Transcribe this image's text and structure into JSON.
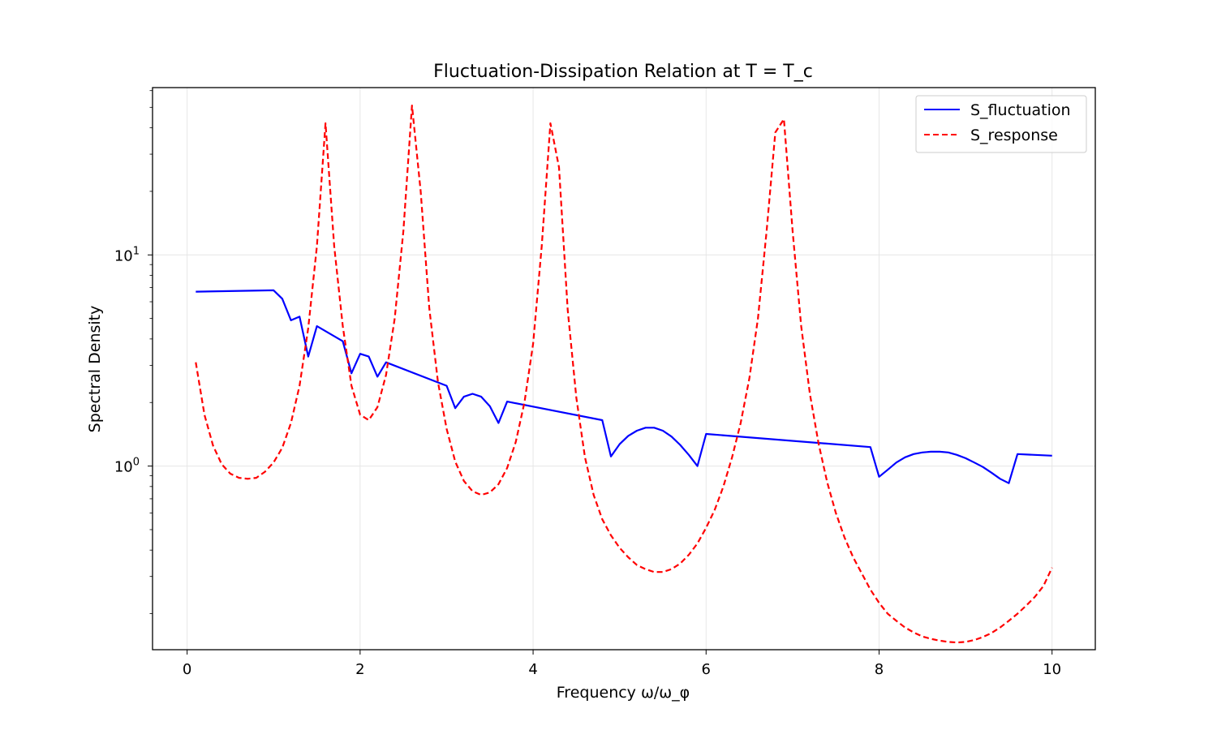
{
  "chart_data": {
    "type": "line",
    "title": "Fluctuation-Dissipation Relation at T = T_c",
    "xlabel": "Frequency ω/ω_φ",
    "ylabel": "Spectral Density",
    "xlim": [
      -0.4,
      10.5
    ],
    "ylim": [
      0.135,
      62
    ],
    "yscale": "log",
    "grid": true,
    "legend_position": "top-right",
    "x_ticks": [
      0,
      2,
      4,
      6,
      8,
      10
    ],
    "x_tick_labels": [
      "0",
      "2",
      "4",
      "6",
      "8",
      "10"
    ],
    "y_ticks": [
      1,
      10
    ],
    "y_tick_bases": [
      "10",
      "10"
    ],
    "y_tick_exps": [
      "0",
      "1"
    ],
    "series": [
      {
        "name": "S_fluctuation",
        "color": "#0000ff",
        "style": "solid",
        "x": [
          0.1,
          1.0,
          1.1,
          1.2,
          1.3,
          1.4,
          1.5,
          1.8,
          1.9,
          2.0,
          2.1,
          2.2,
          2.3,
          3.0,
          3.1,
          3.2,
          3.3,
          3.4,
          3.5,
          3.6,
          3.7,
          4.8,
          4.9,
          5.0,
          5.1,
          5.2,
          5.3,
          5.4,
          5.5,
          5.6,
          5.7,
          5.8,
          5.9,
          6.0,
          7.9,
          8.0,
          8.1,
          8.2,
          8.3,
          8.4,
          8.5,
          8.6,
          8.7,
          8.8,
          8.9,
          9.0,
          9.1,
          9.2,
          9.3,
          9.4,
          9.5,
          9.6,
          10.0
        ],
        "y": [
          6.7,
          6.8,
          6.2,
          4.9,
          5.1,
          3.3,
          4.6,
          3.9,
          2.75,
          3.4,
          3.3,
          2.65,
          3.1,
          2.4,
          1.88,
          2.13,
          2.2,
          2.13,
          1.92,
          1.6,
          2.02,
          1.65,
          1.11,
          1.27,
          1.39,
          1.47,
          1.52,
          1.52,
          1.47,
          1.38,
          1.26,
          1.13,
          1.0,
          1.42,
          1.23,
          0.89,
          0.96,
          1.04,
          1.1,
          1.14,
          1.16,
          1.17,
          1.17,
          1.16,
          1.13,
          1.09,
          1.04,
          0.99,
          0.93,
          0.87,
          0.83,
          1.14,
          1.12
        ]
      },
      {
        "name": "S_response",
        "color": "#ff0000",
        "style": "dashed",
        "x": [
          0.1,
          0.2,
          0.3,
          0.4,
          0.5,
          0.6,
          0.7,
          0.8,
          0.9,
          1.0,
          1.1,
          1.2,
          1.3,
          1.4,
          1.5,
          1.6,
          1.7,
          1.8,
          1.9,
          2.0,
          2.1,
          2.2,
          2.3,
          2.4,
          2.5,
          2.6,
          2.7,
          2.8,
          2.9,
          3.0,
          3.1,
          3.2,
          3.3,
          3.4,
          3.5,
          3.6,
          3.7,
          3.8,
          3.9,
          4.0,
          4.1,
          4.2,
          4.3,
          4.4,
          4.5,
          4.6,
          4.7,
          4.8,
          4.9,
          5.0,
          5.1,
          5.2,
          5.3,
          5.4,
          5.5,
          5.6,
          5.7,
          5.8,
          5.9,
          6.0,
          6.1,
          6.2,
          6.3,
          6.4,
          6.5,
          6.6,
          6.7,
          6.8,
          6.9,
          7.0,
          7.1,
          7.2,
          7.3,
          7.4,
          7.5,
          7.6,
          7.7,
          7.8,
          7.9,
          8.0,
          8.1,
          8.2,
          8.3,
          8.4,
          8.5,
          8.6,
          8.7,
          8.8,
          8.9,
          9.0,
          9.1,
          9.2,
          9.3,
          9.4,
          9.5,
          9.6,
          9.7,
          9.8,
          9.9,
          10.0
        ],
        "y": [
          3.1,
          1.75,
          1.25,
          1.02,
          0.92,
          0.88,
          0.87,
          0.88,
          0.94,
          1.04,
          1.22,
          1.6,
          2.4,
          4.5,
          11.0,
          42.0,
          11.0,
          4.6,
          2.4,
          1.75,
          1.65,
          1.9,
          2.7,
          5.0,
          13.0,
          51.0,
          20.0,
          5.6,
          2.5,
          1.5,
          1.05,
          0.85,
          0.76,
          0.73,
          0.75,
          0.82,
          0.98,
          1.3,
          2.0,
          3.8,
          11.0,
          42.0,
          26.0,
          5.5,
          2.1,
          1.1,
          0.73,
          0.56,
          0.47,
          0.41,
          0.37,
          0.34,
          0.325,
          0.315,
          0.315,
          0.325,
          0.345,
          0.38,
          0.43,
          0.51,
          0.62,
          0.8,
          1.1,
          1.6,
          2.6,
          5.0,
          13.0,
          38.0,
          44.0,
          13.0,
          4.6,
          2.2,
          1.28,
          0.84,
          0.6,
          0.46,
          0.37,
          0.31,
          0.26,
          0.225,
          0.2,
          0.185,
          0.172,
          0.163,
          0.156,
          0.152,
          0.149,
          0.147,
          0.146,
          0.147,
          0.15,
          0.155,
          0.162,
          0.172,
          0.185,
          0.2,
          0.218,
          0.24,
          0.27,
          0.33
        ]
      }
    ]
  }
}
